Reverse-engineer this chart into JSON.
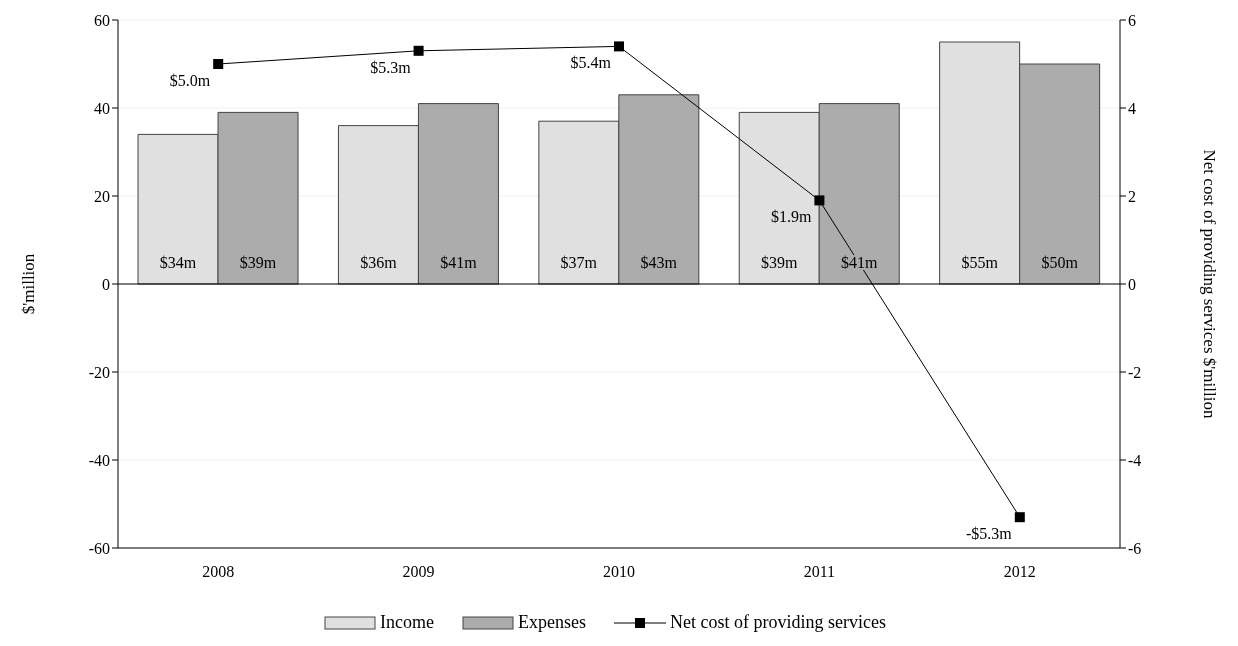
{
  "chart_data": {
    "type": "bar",
    "ylabel": "$'million",
    "y2label": "Net cost of providing services  $'million",
    "categories": [
      "2008",
      "2009",
      "2010",
      "2011",
      "2012"
    ],
    "series": [
      {
        "name": "Income",
        "color": "#e0e0e0",
        "values": [
          34,
          36,
          37,
          39,
          55
        ],
        "value_labels": [
          "$34m",
          "$36m",
          "$37m",
          "$39m",
          "$55m"
        ]
      },
      {
        "name": "Expenses",
        "color": "#acacac",
        "values": [
          39,
          41,
          43,
          41,
          50
        ],
        "value_labels": [
          "$39m",
          "$41m",
          "$43m",
          "$41m",
          "$50m"
        ]
      },
      {
        "name": "Net cost of providing services",
        "type": "line",
        "axis": "y2",
        "color": "#000000",
        "marker": "square",
        "values": [
          5.0,
          5.3,
          5.4,
          1.9,
          -5.3
        ],
        "value_labels": [
          "$5.0m",
          "$5.3m",
          "$5.4m",
          "$1.9m",
          "-$5.3m"
        ]
      }
    ],
    "ylim": [
      -60,
      60
    ],
    "yticks": [
      -60,
      -40,
      -20,
      0,
      20,
      40,
      60
    ],
    "y2lim": [
      -6,
      6
    ],
    "y2ticks": [
      -6,
      -4,
      -2,
      0,
      2,
      4,
      6
    ],
    "grid": "y",
    "legend": "bottom"
  }
}
